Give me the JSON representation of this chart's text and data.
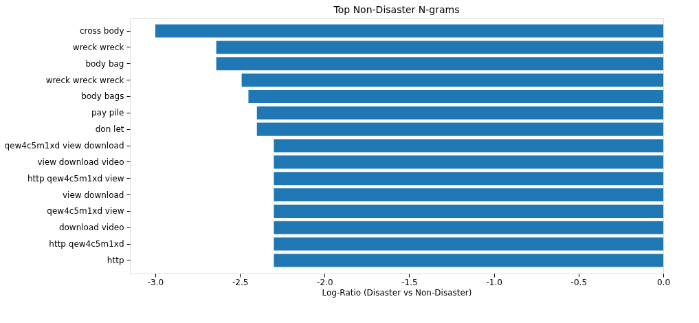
{
  "chart_data": {
    "type": "bar",
    "orientation": "horizontal",
    "title": "Top Non-Disaster N-grams",
    "xlabel": "Log-Ratio (Disaster vs Non-Disaster)",
    "categories": [
      "cross body",
      "wreck wreck",
      "body bag",
      "wreck wreck wreck",
      "body bags",
      "pay pile",
      "don let",
      "qew4c5m1xd view download",
      "view download video",
      "http qew4c5m1xd view",
      "view download",
      "qew4c5m1xd view",
      "download video",
      "http qew4c5m1xd",
      "http"
    ],
    "values": [
      -3.0,
      -2.64,
      -2.64,
      -2.49,
      -2.45,
      -2.4,
      -2.4,
      -2.3,
      -2.3,
      -2.3,
      -2.3,
      -2.3,
      -2.3,
      -2.3,
      -2.3
    ],
    "color": "#1f77b4",
    "xlim": [
      -3.15,
      0
    ],
    "xticks": [
      {
        "value": -3.0,
        "label": "-3.0"
      },
      {
        "value": -2.5,
        "label": "-2.5"
      },
      {
        "value": -2.0,
        "label": "-2.0"
      },
      {
        "value": -1.5,
        "label": "-1.5"
      },
      {
        "value": -1.0,
        "label": "-1.0"
      },
      {
        "value": -0.5,
        "label": "-0.5"
      },
      {
        "value": 0,
        "label": "0.0"
      }
    ]
  }
}
